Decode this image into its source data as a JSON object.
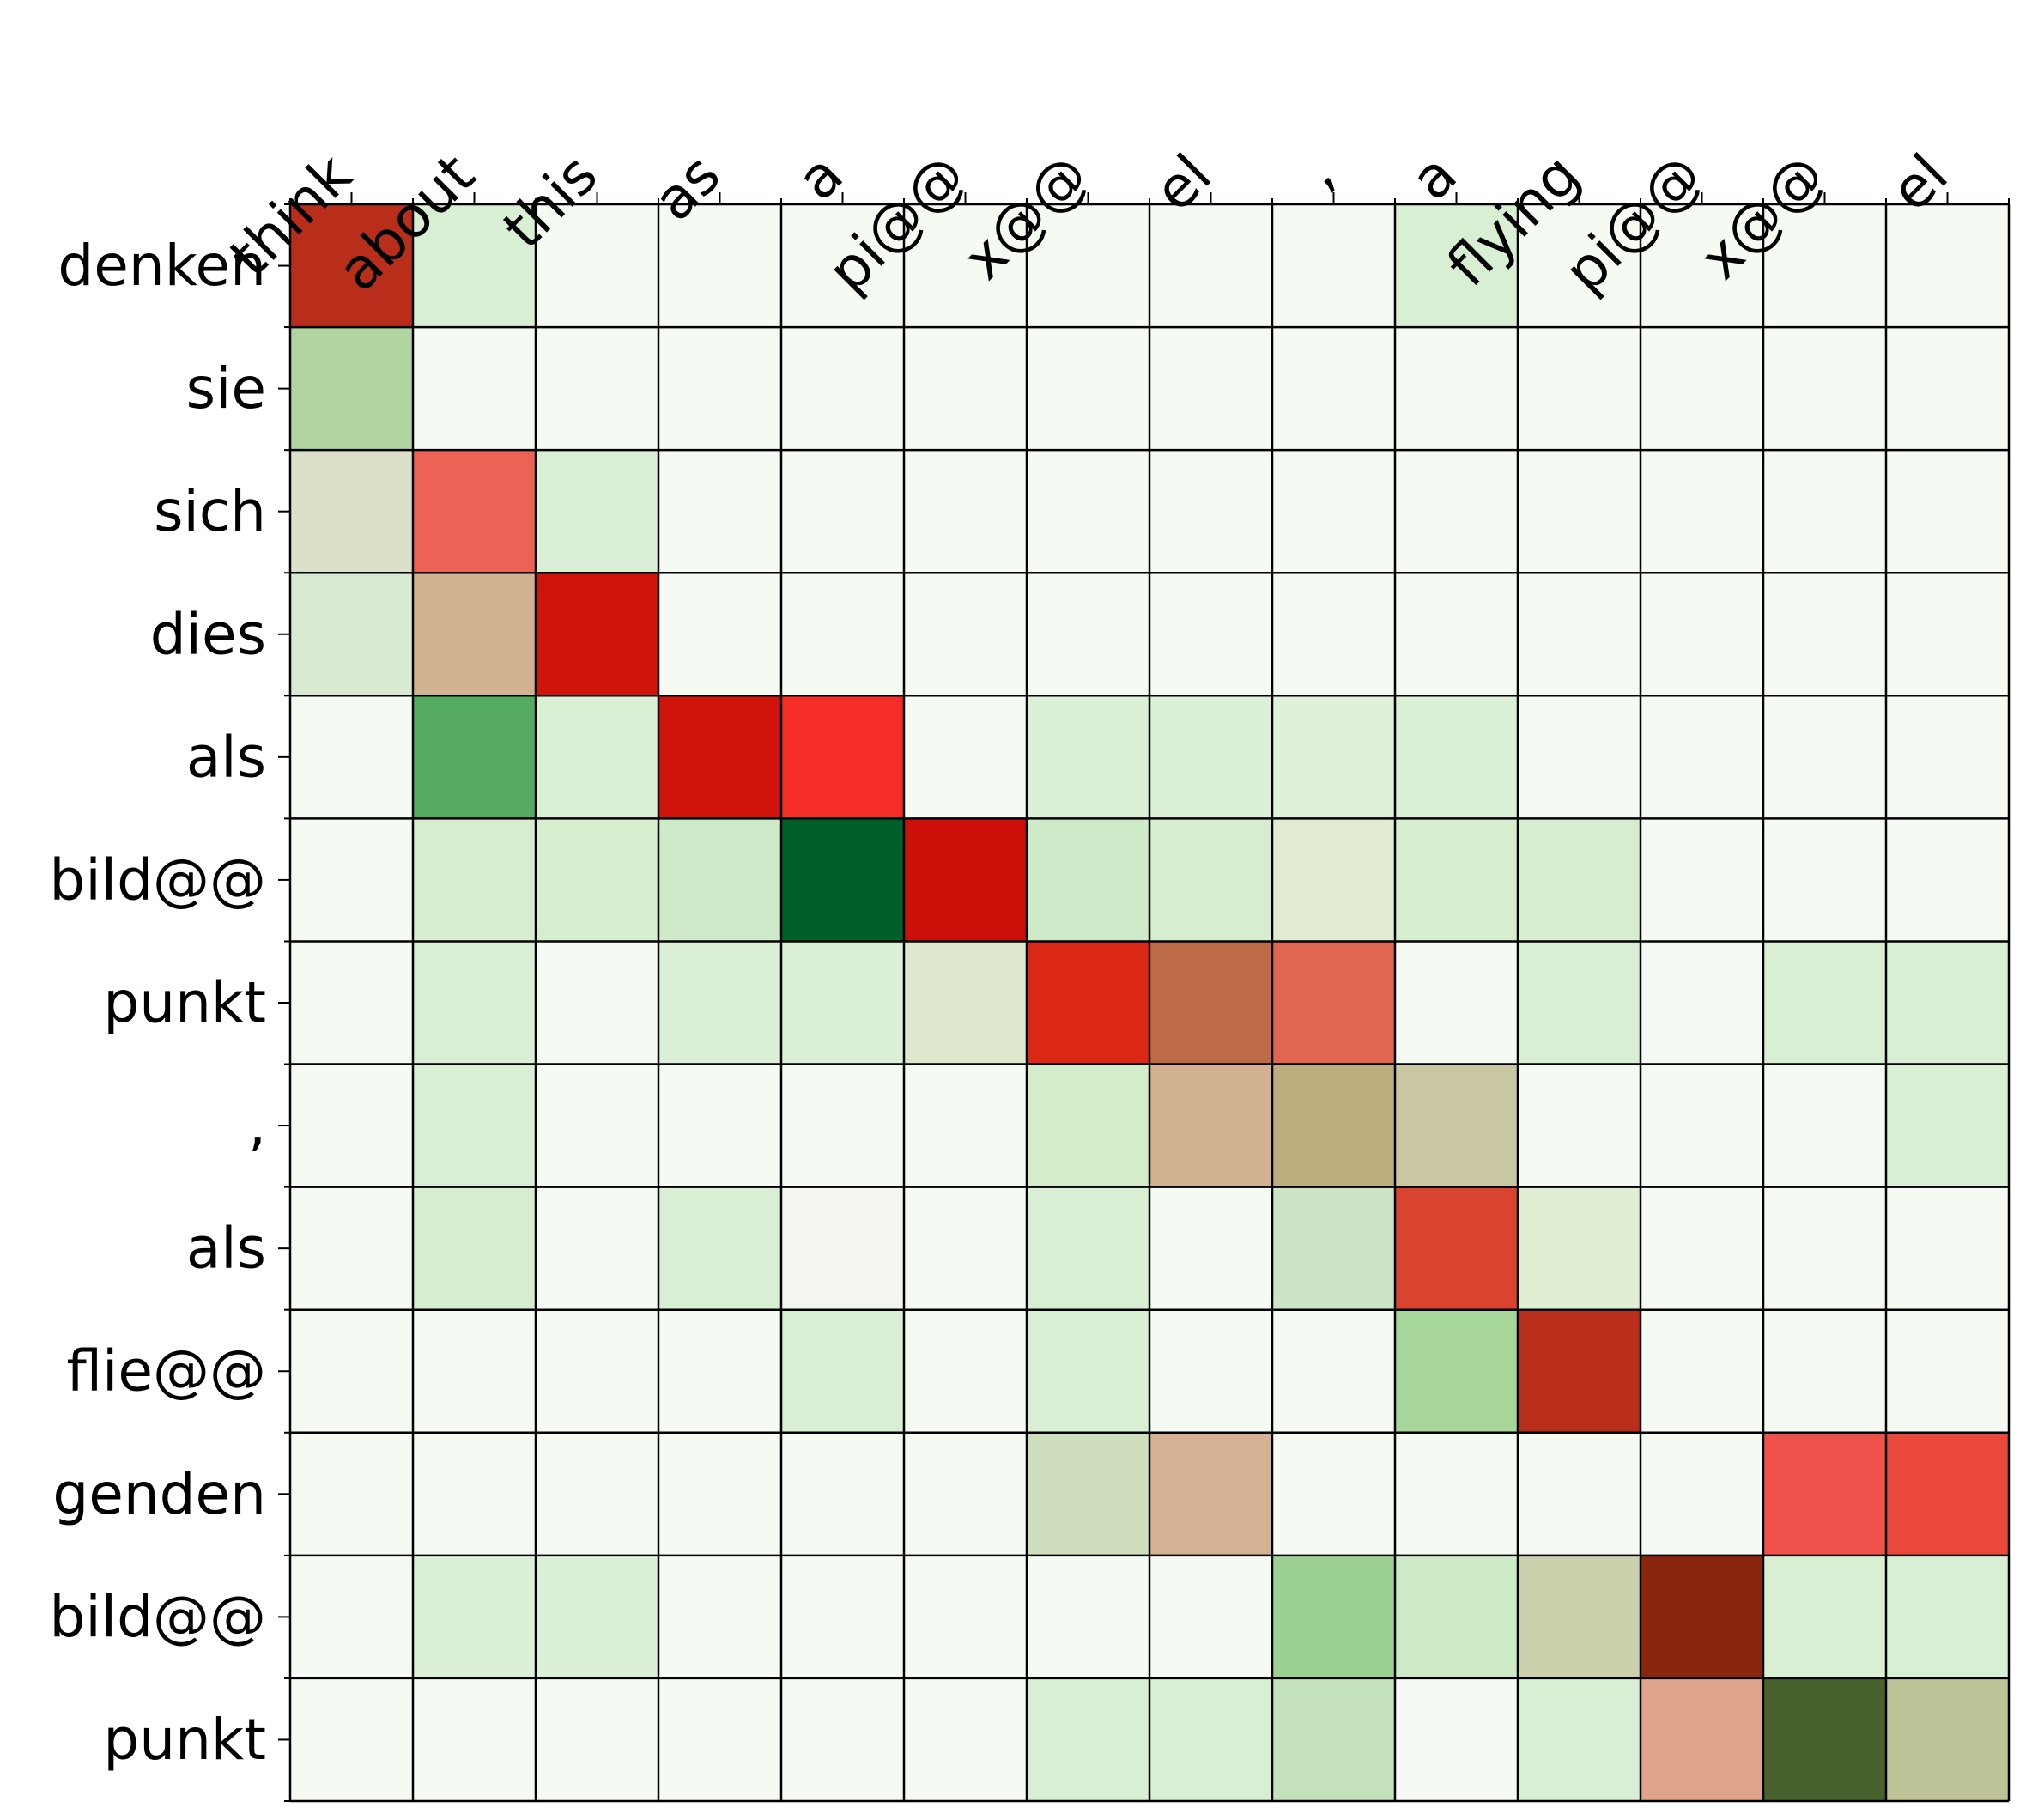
{
  "chart_data": {
    "type": "heatmap",
    "title": "",
    "xlabel": "",
    "ylabel": "",
    "x_labels": [
      "think",
      "about",
      "this",
      "as",
      "a",
      "pi@@",
      "x@@",
      "el",
      ",",
      "a",
      "flying",
      "pi@@",
      "x@@",
      "el"
    ],
    "y_labels": [
      "denken",
      "sie",
      "sich",
      "dies",
      "als",
      "bild@@",
      "punkt",
      ",",
      "als",
      "flie@@",
      "genden",
      "bild@@",
      "punkt"
    ],
    "cells": [
      [
        "#b82e1b",
        "#d8efd4",
        "#f5faf2",
        "#f5faf2",
        "#f5faf2",
        "#f5faf2",
        "#f5faf2",
        "#f5faf2",
        "#f5faf2",
        "#d8efd4",
        "#f5faf2",
        "#f5faf2",
        "#f5faf2",
        "#f5faf2"
      ],
      [
        "#b1d4a0",
        "#f5faf2",
        "#f5faf2",
        "#f5faf2",
        "#f5faf2",
        "#f5faf2",
        "#f5faf2",
        "#f5faf2",
        "#f5faf2",
        "#f5faf2",
        "#f5faf2",
        "#f5faf2",
        "#f5faf2",
        "#f5faf2"
      ],
      [
        "#dde0c8",
        "#ec6255",
        "#dbefd6",
        "#f5faf2",
        "#f5faf2",
        "#f5faf2",
        "#f5faf2",
        "#f5faf2",
        "#f5faf2",
        "#f5faf2",
        "#f5faf2",
        "#f5faf2",
        "#f5faf2",
        "#f5faf2"
      ],
      [
        "#d8ebd0",
        "#d1b291",
        "#d0140c",
        "#f5faf2",
        "#f5faf2",
        "#f5faf2",
        "#f5faf2",
        "#f5faf2",
        "#f5faf2",
        "#f5faf2",
        "#f5faf2",
        "#f5faf2",
        "#f5faf2",
        "#f5faf2"
      ],
      [
        "#f5faf2",
        "#56ab62",
        "#d8efd4",
        "#d0140c",
        "#f52d29",
        "#f5faf2",
        "#dbf0d6",
        "#dbf0d6",
        "#dff1da",
        "#dbf0d6",
        "#f5faf2",
        "#f5faf2",
        "#f5faf2",
        "#f5faf2"
      ],
      [
        "#f5faf2",
        "#d6eece",
        "#d6eece",
        "#cfeac8",
        "#005f28",
        "#ca1008",
        "#cfeac8",
        "#d6eece",
        "#e2ecd2",
        "#d6eece",
        "#d6eece",
        "#f5faf2",
        "#f5faf2",
        "#f5faf2"
      ],
      [
        "#f5faf2",
        "#d8efd4",
        "#f5faf2",
        "#dcf0d7",
        "#dcf0d7",
        "#dfe8cd",
        "#db2814",
        "#bd6b47",
        "#e06652",
        "#f5faf2",
        "#d8efd4",
        "#f5faf2",
        "#d8efd4",
        "#d8efd4"
      ],
      [
        "#f5faf2",
        "#d8efd4",
        "#f5faf2",
        "#f5faf2",
        "#f5faf2",
        "#f5faf2",
        "#d3ecca",
        "#d3b291",
        "#bdac7e",
        "#c9c6a2",
        "#f5faf2",
        "#f5faf2",
        "#f5faf2",
        "#d8efd4"
      ],
      [
        "#f5faf2",
        "#d6eece",
        "#f5faf2",
        "#d8efd4",
        "#f5f6ef",
        "#f5faf2",
        "#d8efd4",
        "#f5faf2",
        "#cde5c4",
        "#d9432f",
        "#e0efd2",
        "#f5faf2",
        "#f5faf2",
        "#f5faf2"
      ],
      [
        "#f5faf2",
        "#f5faf2",
        "#f5faf2",
        "#f5faf2",
        "#d8efd4",
        "#f5faf2",
        "#d8efd4",
        "#f5faf2",
        "#f5faf2",
        "#a6d69a",
        "#b82e1b",
        "#f5faf2",
        "#f5faf2",
        "#f5faf2"
      ],
      [
        "#f5faf2",
        "#f5faf2",
        "#f5faf2",
        "#f5faf2",
        "#f5faf2",
        "#f5faf2",
        "#cfdfbd",
        "#d6b194",
        "#f5faf2",
        "#f5faf2",
        "#f5faf2",
        "#f5faf2",
        "#ef524a",
        "#ec493e"
      ],
      [
        "#f5faf2",
        "#dcf0d7",
        "#dcf0d7",
        "#f5faf2",
        "#f5faf2",
        "#f5faf2",
        "#f5faf2",
        "#f5faf2",
        "#9cd291",
        "#cdeac6",
        "#cbd1ad",
        "#8a250e",
        "#d8efd4",
        "#d8efd4"
      ],
      [
        "#f5faf2",
        "#f5faf2",
        "#f5faf2",
        "#f5faf2",
        "#f5faf2",
        "#f5faf2",
        "#d8efd4",
        "#d8efd4",
        "#c3e2bb",
        "#f5faf2",
        "#d8efd4",
        "#e0a48c",
        "#47612d",
        "#bdc397"
      ]
    ],
    "colormap": [
      "#005f28",
      "#a6d69a",
      "#f5faf2",
      "#d1b291",
      "#f52d29",
      "#8a250e"
    ],
    "grid": true,
    "legend": "none"
  }
}
